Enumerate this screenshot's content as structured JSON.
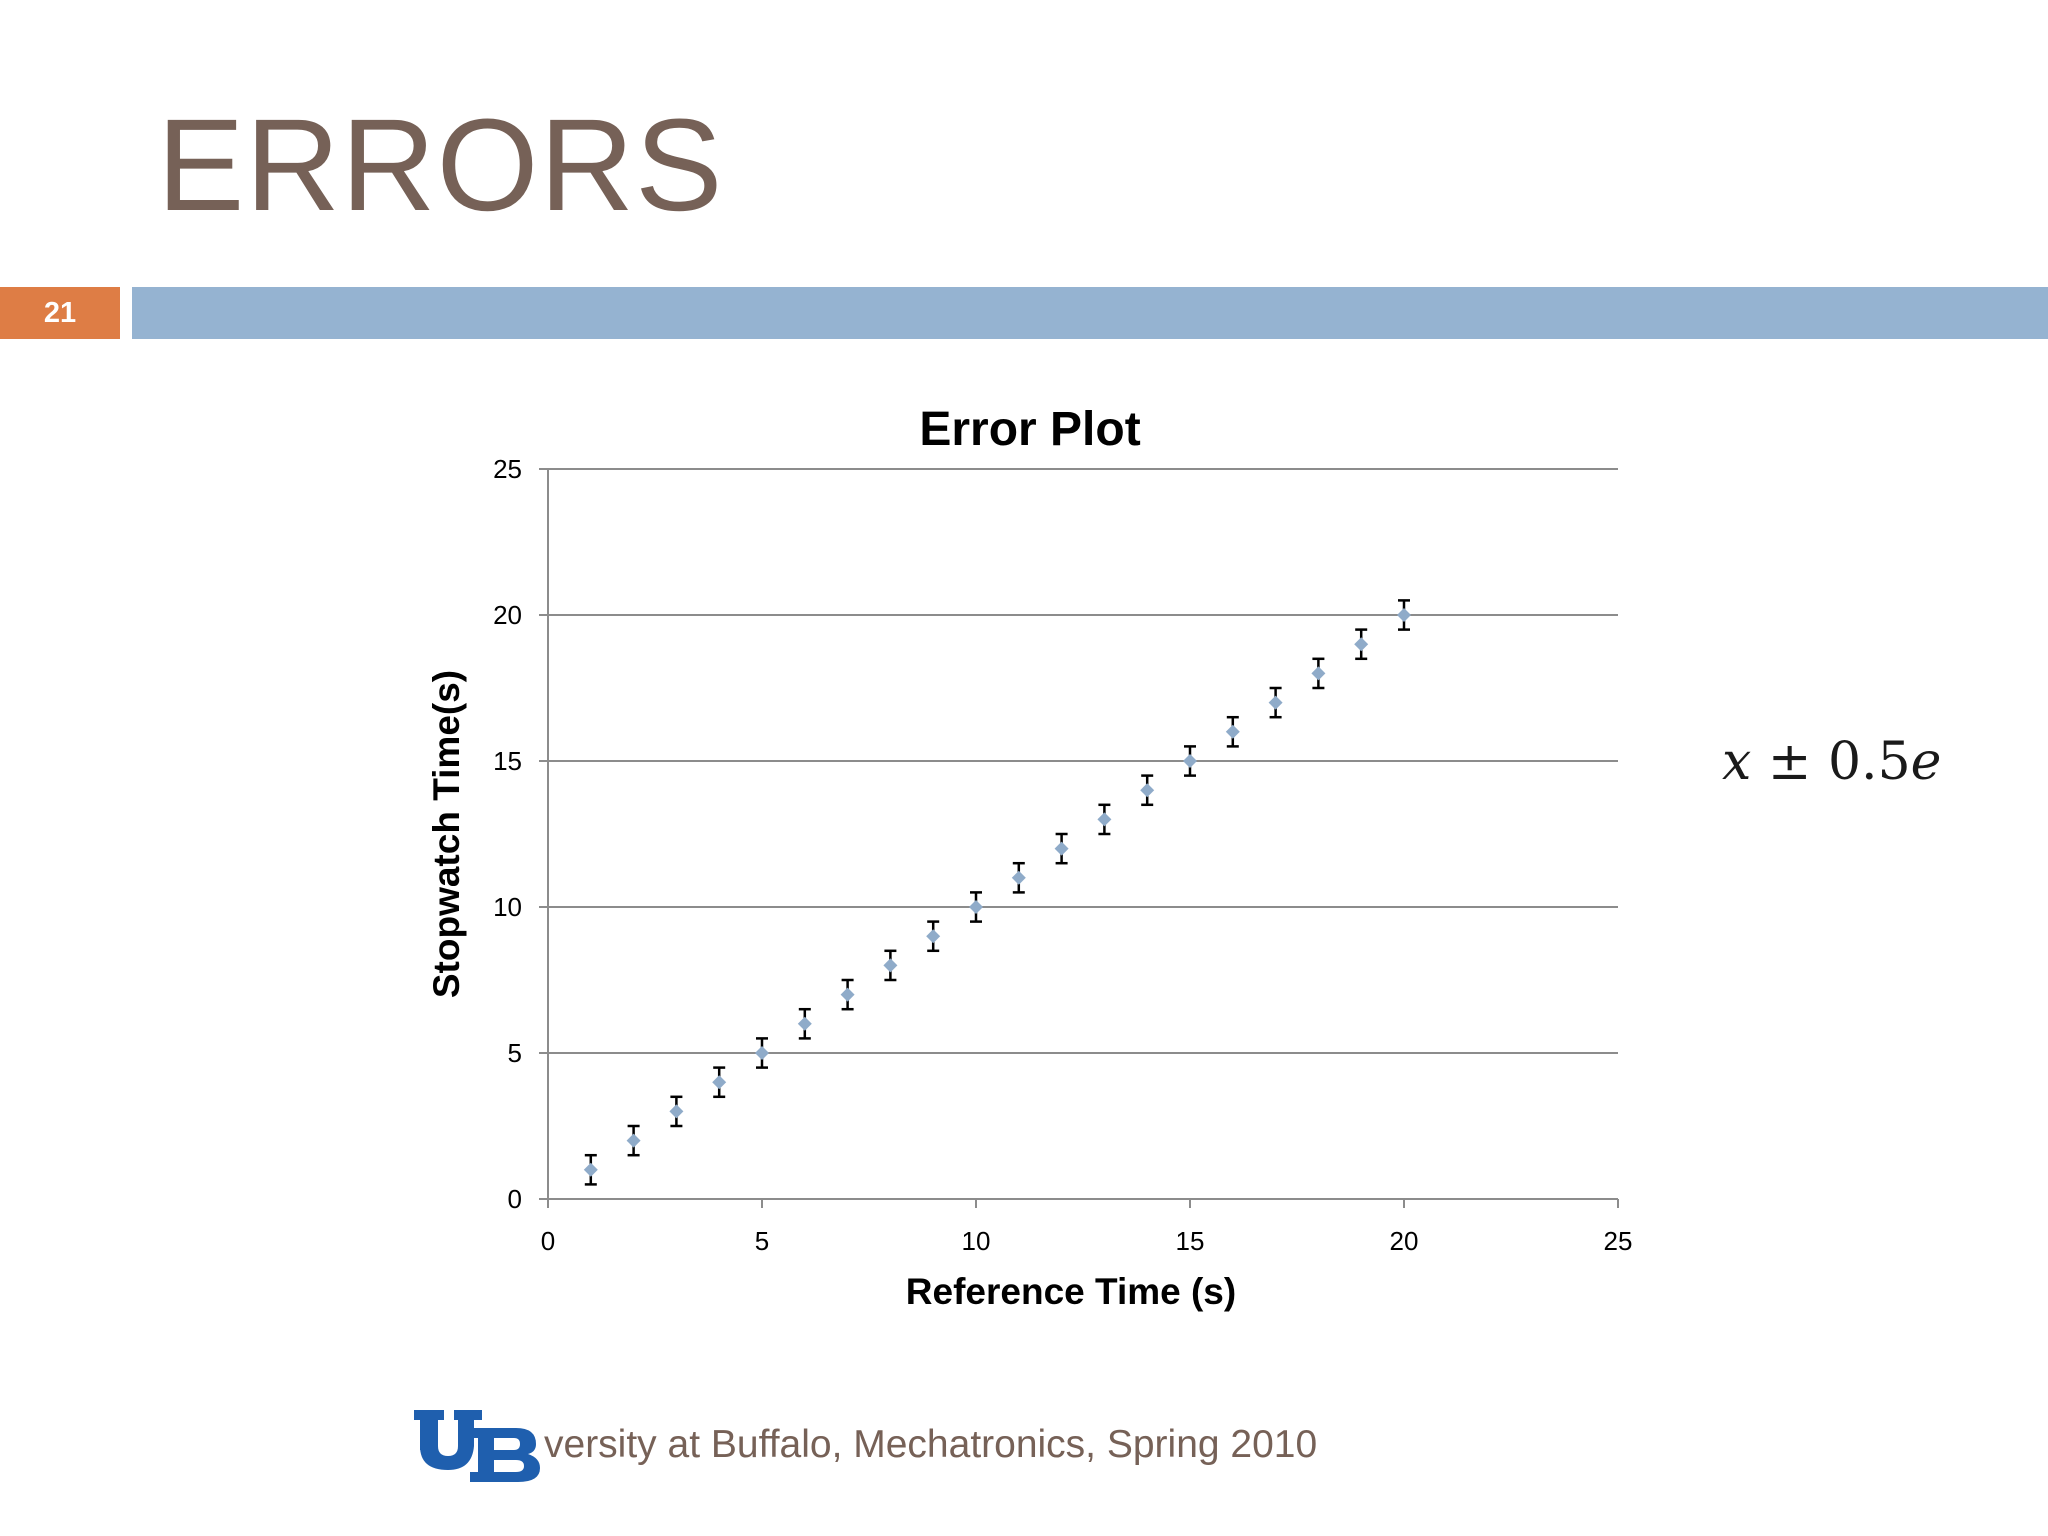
{
  "slide": {
    "title": "ERRORS",
    "number": "21",
    "footer_text": "versity at Buffalo, Mechatronics, Spring 2010",
    "formula": {
      "x": "x",
      "pm": "±",
      "coef": "0.5",
      "e": "e"
    }
  },
  "colors": {
    "title": "#766157",
    "number_badge": "#de7d45",
    "header_bar": "#95b3d1",
    "marker": "#8fabc9",
    "error_bar": "#000000",
    "logo": "#1f5fae"
  },
  "chart_data": {
    "type": "scatter",
    "title": "Error Plot",
    "xlabel": "Reference Time (s)",
    "ylabel": "Stopwatch Time(s)",
    "xlim": [
      0,
      25
    ],
    "ylim": [
      0,
      25
    ],
    "xticks": [
      0,
      5,
      10,
      15,
      20,
      25
    ],
    "yticks": [
      0,
      5,
      10,
      15,
      20,
      25
    ],
    "grid": "horizontal",
    "x": [
      1,
      2,
      3,
      4,
      5,
      6,
      7,
      8,
      9,
      10,
      11,
      12,
      13,
      14,
      15,
      16,
      17,
      18,
      19,
      20
    ],
    "y": [
      1,
      2,
      3,
      4,
      5,
      6,
      7,
      8,
      9,
      10,
      11,
      12,
      13,
      14,
      15,
      16,
      17,
      18,
      19,
      20
    ],
    "error": 0.5,
    "marker": "diamond"
  }
}
